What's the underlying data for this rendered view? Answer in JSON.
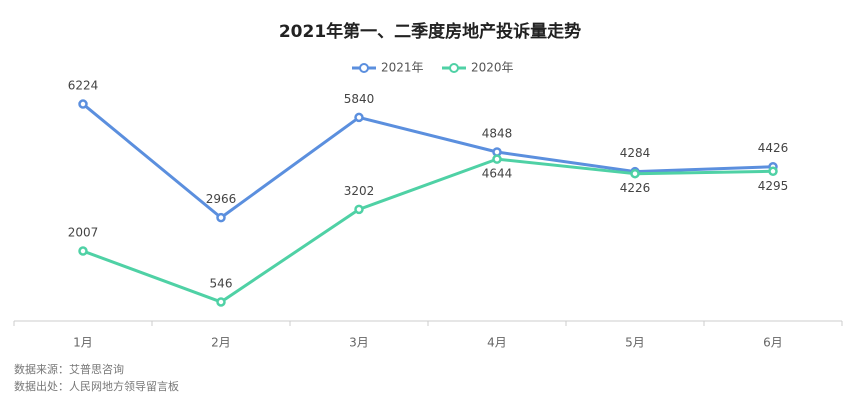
{
  "chart_data": {
    "type": "line",
    "title": "2021年第一、二季度房地产投诉量走势",
    "categories": [
      "1月",
      "2月",
      "3月",
      "4月",
      "5月",
      "6月"
    ],
    "series": [
      {
        "name": "2021年",
        "color": "#5b8fde",
        "values": [
          6224,
          2966,
          5840,
          4848,
          4284,
          4426
        ]
      },
      {
        "name": "2020年",
        "color": "#4fd1a5",
        "values": [
          2007,
          546,
          3202,
          4644,
          4226,
          4295
        ]
      }
    ],
    "ylim": [
      0,
      7000
    ],
    "legend": "top",
    "notes": [
      "数据来源：艾普思咨询",
      "数据出处：人民网地方领导留言板"
    ]
  }
}
